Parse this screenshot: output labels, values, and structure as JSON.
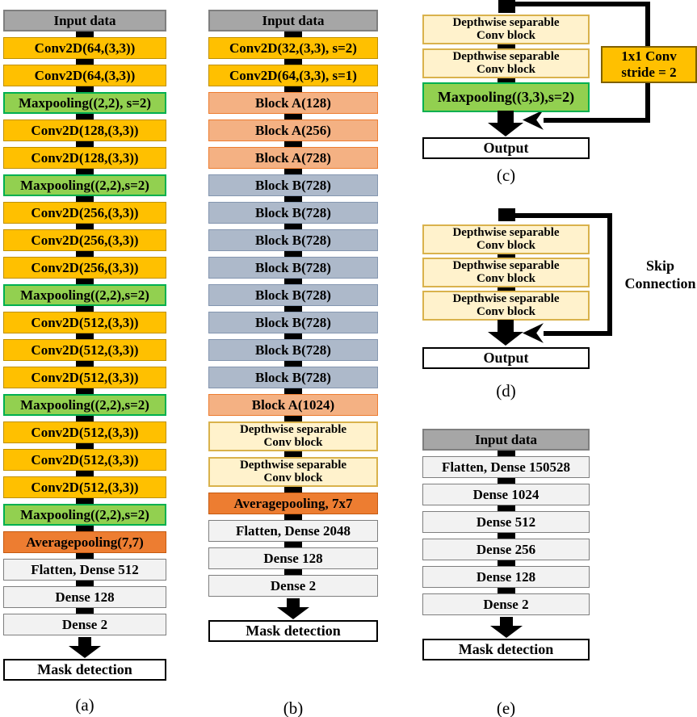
{
  "colors": {
    "input_fill": "#A6A6A6",
    "input_border": "#7F7F7F",
    "conv_fill": "#FFC000",
    "conv_border": "#BF9000",
    "pool_fill": "#92D050",
    "pool_border": "#00B050",
    "avgpool_fill": "#ED7D31",
    "avgpool_border": "#C55A11",
    "blockA_fill": "#F4B183",
    "blockA_border": "#ED7D31",
    "blockB_fill": "#ADB9CA",
    "blockB_border": "#8496B0",
    "dws_fill": "#FFF2CC",
    "dws_border": "#D9B24C",
    "dense_fill": "#F2F2F2",
    "dense_border": "#7F7F7F",
    "conv1x1_border": "#7F6000",
    "flow": "#000000"
  },
  "panels": {
    "a": {
      "label": "(a)",
      "output": "Mask detection",
      "layers": [
        {
          "type": "input",
          "label": "Input data"
        },
        {
          "type": "conv",
          "label": "Conv2D(64,(3,3))"
        },
        {
          "type": "conv",
          "label": "Conv2D(64,(3,3))"
        },
        {
          "type": "pool",
          "label": "Maxpooling((2,2), s=2)"
        },
        {
          "type": "conv",
          "label": "Conv2D(128,(3,3))"
        },
        {
          "type": "conv",
          "label": "Conv2D(128,(3,3))"
        },
        {
          "type": "pool",
          "label": "Maxpooling((2,2),s=2)"
        },
        {
          "type": "conv",
          "label": "Conv2D(256,(3,3))"
        },
        {
          "type": "conv",
          "label": "Conv2D(256,(3,3))"
        },
        {
          "type": "conv",
          "label": "Conv2D(256,(3,3))"
        },
        {
          "type": "pool",
          "label": "Maxpooling((2,2),s=2)"
        },
        {
          "type": "conv",
          "label": "Conv2D(512,(3,3))"
        },
        {
          "type": "conv",
          "label": "Conv2D(512,(3,3))"
        },
        {
          "type": "conv",
          "label": "Conv2D(512,(3,3))"
        },
        {
          "type": "pool",
          "label": "Maxpooling((2,2),s=2)"
        },
        {
          "type": "conv",
          "label": "Conv2D(512,(3,3))"
        },
        {
          "type": "conv",
          "label": "Conv2D(512,(3,3))"
        },
        {
          "type": "conv",
          "label": "Conv2D(512,(3,3))"
        },
        {
          "type": "pool",
          "label": "Maxpooling((2,2),s=2)"
        },
        {
          "type": "avgpool",
          "label": "Averagepooling(7,7)"
        },
        {
          "type": "dense",
          "label": "Flatten, Dense 512"
        },
        {
          "type": "dense",
          "label": "Dense 128"
        },
        {
          "type": "dense",
          "label": "Dense 2"
        }
      ]
    },
    "b": {
      "label": "(b)",
      "output": "Mask detection",
      "layers": [
        {
          "type": "input",
          "label": "Input data"
        },
        {
          "type": "conv",
          "label": "Conv2D(32,(3,3), s=2)"
        },
        {
          "type": "conv",
          "label": "Conv2D(64,(3,3), s=1)"
        },
        {
          "type": "blockA",
          "label": "Block A(128)"
        },
        {
          "type": "blockA",
          "label": "Block A(256)"
        },
        {
          "type": "blockA",
          "label": "Block A(728)"
        },
        {
          "type": "blockB",
          "label": "Block B(728)"
        },
        {
          "type": "blockB",
          "label": "Block B(728)"
        },
        {
          "type": "blockB",
          "label": "Block B(728)"
        },
        {
          "type": "blockB",
          "label": "Block B(728)"
        },
        {
          "type": "blockB",
          "label": "Block B(728)"
        },
        {
          "type": "blockB",
          "label": "Block B(728)"
        },
        {
          "type": "blockB",
          "label": "Block B(728)"
        },
        {
          "type": "blockB",
          "label": "Block B(728)"
        },
        {
          "type": "blockA",
          "label": "Block A(1024)"
        },
        {
          "type": "dws",
          "label": "Depthwise separable",
          "label2": "Conv block"
        },
        {
          "type": "dws",
          "label": "Depthwise separable",
          "label2": "Conv block"
        },
        {
          "type": "avgpool",
          "label": "Averagepooling, 7x7"
        },
        {
          "type": "dense",
          "label": "Flatten, Dense 2048"
        },
        {
          "type": "dense",
          "label": "Dense 128"
        },
        {
          "type": "dense",
          "label": "Dense 2"
        }
      ]
    },
    "c": {
      "label": "(c)",
      "output": "Output",
      "layers": [
        {
          "type": "dws",
          "label": "Depthwise separable",
          "label2": "Conv block"
        },
        {
          "type": "dws",
          "label": "Depthwise separable",
          "label2": "Conv block"
        },
        {
          "type": "pool",
          "label": "Maxpooling((3,3),s=2)"
        }
      ],
      "side_box": {
        "label": "1x1 Conv",
        "label2": "stride = 2"
      }
    },
    "d": {
      "label": "(d)",
      "output": "Output",
      "layers": [
        {
          "type": "dws",
          "label": "Depthwise separable",
          "label2": "Conv block"
        },
        {
          "type": "dws",
          "label": "Depthwise separable",
          "label2": "Conv block"
        },
        {
          "type": "dws",
          "label": "Depthwise separable",
          "label2": "Conv block"
        }
      ],
      "skip_label": {
        "label": "Skip",
        "label2": "Connection"
      }
    },
    "e": {
      "label": "(e)",
      "output": "Mask detection",
      "layers": [
        {
          "type": "input",
          "label": "Input data"
        },
        {
          "type": "dense",
          "label": "Flatten, Dense 150528"
        },
        {
          "type": "dense",
          "label": "Dense 1024"
        },
        {
          "type": "dense",
          "label": "Dense 512"
        },
        {
          "type": "dense",
          "label": "Dense 256"
        },
        {
          "type": "dense",
          "label": "Dense 128"
        },
        {
          "type": "dense",
          "label": "Dense 2"
        }
      ]
    }
  }
}
